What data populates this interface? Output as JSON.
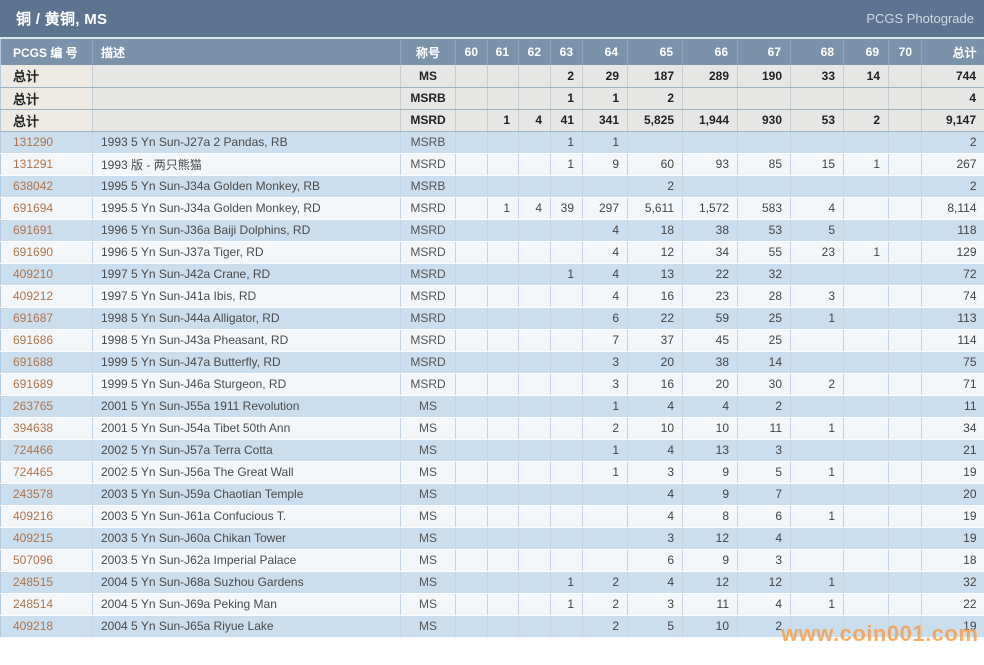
{
  "header": {
    "title": "铜 / 黄铜, MS",
    "brand": "PCGS Photograde"
  },
  "table": {
    "columns": [
      "PCGS 编 号",
      "描述",
      "称号",
      "60",
      "61",
      "62",
      "63",
      "64",
      "65",
      "66",
      "67",
      "68",
      "69",
      "70",
      "总计"
    ],
    "total_label": "总计",
    "total_rows": [
      {
        "designation": "MS",
        "grades": [
          "",
          "",
          "",
          "2",
          "29",
          "187",
          "289",
          "190",
          "33",
          "14",
          ""
        ],
        "total": "744"
      },
      {
        "designation": "MSRB",
        "grades": [
          "",
          "",
          "",
          "1",
          "1",
          "2",
          "",
          "",
          "",
          "",
          ""
        ],
        "total": "4"
      },
      {
        "designation": "MSRD",
        "grades": [
          "",
          "1",
          "4",
          "41",
          "341",
          "5,825",
          "1,944",
          "930",
          "53",
          "2",
          ""
        ],
        "total": "9,147"
      }
    ],
    "rows": [
      {
        "pcgs": "131290",
        "desc": "1993 5 Yn Sun-J27a 2 Pandas, RB",
        "designation": "MSRB",
        "grades": [
          "",
          "",
          "",
          "1",
          "1",
          "",
          "",
          "",
          "",
          "",
          ""
        ],
        "total": "2"
      },
      {
        "pcgs": "131291",
        "desc": "1993 版 - 两只熊猫",
        "designation": "MSRD",
        "grades": [
          "",
          "",
          "",
          "1",
          "9",
          "60",
          "93",
          "85",
          "15",
          "1",
          ""
        ],
        "total": "267"
      },
      {
        "pcgs": "638042",
        "desc": "1995 5 Yn Sun-J34a Golden Monkey, RB",
        "designation": "MSRB",
        "grades": [
          "",
          "",
          "",
          "",
          "",
          "2",
          "",
          "",
          "",
          "",
          ""
        ],
        "total": "2"
      },
      {
        "pcgs": "691694",
        "desc": "1995 5 Yn Sun-J34a Golden Monkey, RD",
        "designation": "MSRD",
        "grades": [
          "",
          "1",
          "4",
          "39",
          "297",
          "5,611",
          "1,572",
          "583",
          "4",
          "",
          ""
        ],
        "total": "8,114"
      },
      {
        "pcgs": "691691",
        "desc": "1996 5 Yn Sun-J36a Baiji Dolphins, RD",
        "designation": "MSRD",
        "grades": [
          "",
          "",
          "",
          "",
          "4",
          "18",
          "38",
          "53",
          "5",
          "",
          ""
        ],
        "total": "118"
      },
      {
        "pcgs": "691690",
        "desc": "1996 5 Yn Sun-J37a Tiger, RD",
        "designation": "MSRD",
        "grades": [
          "",
          "",
          "",
          "",
          "4",
          "12",
          "34",
          "55",
          "23",
          "1",
          ""
        ],
        "total": "129"
      },
      {
        "pcgs": "409210",
        "desc": "1997 5 Yn Sun-J42a Crane, RD",
        "designation": "MSRD",
        "grades": [
          "",
          "",
          "",
          "1",
          "4",
          "13",
          "22",
          "32",
          "",
          "",
          ""
        ],
        "total": "72"
      },
      {
        "pcgs": "409212",
        "desc": "1997 5 Yn Sun-J41a Ibis, RD",
        "designation": "MSRD",
        "grades": [
          "",
          "",
          "",
          "",
          "4",
          "16",
          "23",
          "28",
          "3",
          "",
          ""
        ],
        "total": "74"
      },
      {
        "pcgs": "691687",
        "desc": "1998 5 Yn Sun-J44a Alligator, RD",
        "designation": "MSRD",
        "grades": [
          "",
          "",
          "",
          "",
          "6",
          "22",
          "59",
          "25",
          "1",
          "",
          ""
        ],
        "total": "113"
      },
      {
        "pcgs": "691686",
        "desc": "1998 5 Yn Sun-J43a Pheasant, RD",
        "designation": "MSRD",
        "grades": [
          "",
          "",
          "",
          "",
          "7",
          "37",
          "45",
          "25",
          "",
          "",
          ""
        ],
        "total": "114"
      },
      {
        "pcgs": "691688",
        "desc": "1999 5 Yn Sun-J47a Butterfly, RD",
        "designation": "MSRD",
        "grades": [
          "",
          "",
          "",
          "",
          "3",
          "20",
          "38",
          "14",
          "",
          "",
          ""
        ],
        "total": "75"
      },
      {
        "pcgs": "691689",
        "desc": "1999 5 Yn Sun-J46a Sturgeon, RD",
        "designation": "MSRD",
        "grades": [
          "",
          "",
          "",
          "",
          "3",
          "16",
          "20",
          "30",
          "2",
          "",
          ""
        ],
        "total": "71"
      },
      {
        "pcgs": "263765",
        "desc": "2001 5 Yn Sun-J55a 1911 Revolution",
        "designation": "MS",
        "grades": [
          "",
          "",
          "",
          "",
          "1",
          "4",
          "4",
          "2",
          "",
          "",
          ""
        ],
        "total": "11"
      },
      {
        "pcgs": "394638",
        "desc": "2001 5 Yn Sun-J54a Tibet 50th Ann",
        "designation": "MS",
        "grades": [
          "",
          "",
          "",
          "",
          "2",
          "10",
          "10",
          "11",
          "1",
          "",
          ""
        ],
        "total": "34"
      },
      {
        "pcgs": "724466",
        "desc": "2002 5 Yn Sun-J57a Terra Cotta",
        "designation": "MS",
        "grades": [
          "",
          "",
          "",
          "",
          "1",
          "4",
          "13",
          "3",
          "",
          "",
          ""
        ],
        "total": "21"
      },
      {
        "pcgs": "724465",
        "desc": "2002 5 Yn Sun-J56a The Great Wall",
        "designation": "MS",
        "grades": [
          "",
          "",
          "",
          "",
          "1",
          "3",
          "9",
          "5",
          "1",
          "",
          ""
        ],
        "total": "19"
      },
      {
        "pcgs": "243578",
        "desc": "2003 5 Yn Sun-J59a Chaotian Temple",
        "designation": "MS",
        "grades": [
          "",
          "",
          "",
          "",
          "",
          "4",
          "9",
          "7",
          "",
          "",
          ""
        ],
        "total": "20"
      },
      {
        "pcgs": "409216",
        "desc": "2003 5 Yn Sun-J61a Confucious T.",
        "designation": "MS",
        "grades": [
          "",
          "",
          "",
          "",
          "",
          "4",
          "8",
          "6",
          "1",
          "",
          ""
        ],
        "total": "19"
      },
      {
        "pcgs": "409215",
        "desc": "2003 5 Yn Sun-J60a Chikan Tower",
        "designation": "MS",
        "grades": [
          "",
          "",
          "",
          "",
          "",
          "3",
          "12",
          "4",
          "",
          "",
          ""
        ],
        "total": "19"
      },
      {
        "pcgs": "507096",
        "desc": "2003 5 Yn Sun-J62a Imperial Palace",
        "designation": "MS",
        "grades": [
          "",
          "",
          "",
          "",
          "",
          "6",
          "9",
          "3",
          "",
          "",
          ""
        ],
        "total": "18"
      },
      {
        "pcgs": "248515",
        "desc": "2004 5 Yn Sun-J68a Suzhou Gardens",
        "designation": "MS",
        "grades": [
          "",
          "",
          "",
          "1",
          "2",
          "4",
          "12",
          "12",
          "1",
          "",
          ""
        ],
        "total": "32"
      },
      {
        "pcgs": "248514",
        "desc": "2004 5 Yn Sun-J69a Peking Man",
        "designation": "MS",
        "grades": [
          "",
          "",
          "",
          "1",
          "2",
          "3",
          "11",
          "4",
          "1",
          "",
          ""
        ],
        "total": "22"
      },
      {
        "pcgs": "409218",
        "desc": "2004 5 Yn Sun-J65a Riyue Lake",
        "designation": "MS",
        "grades": [
          "",
          "",
          "",
          "",
          "2",
          "5",
          "10",
          "2",
          "",
          "",
          ""
        ],
        "total": "19"
      }
    ]
  },
  "watermark": "www.coin001.com",
  "colors": {
    "titlebar": "#5d7490",
    "header_row": "#7b93aa",
    "row_blue": "#cbdeee",
    "row_white": "#f3f7fa",
    "row_total": "#e6e7e5",
    "pcgs_link": "#b0734a",
    "watermark": "#f79b3f"
  }
}
